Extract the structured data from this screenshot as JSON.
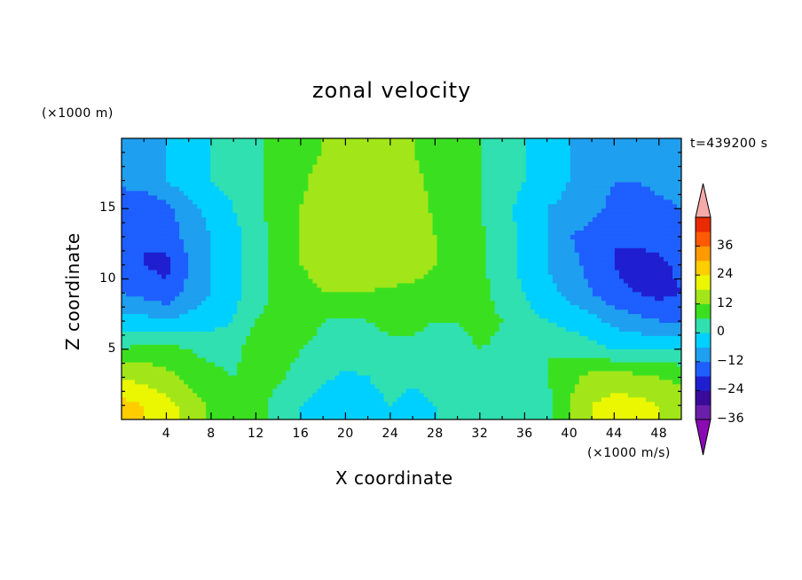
{
  "chart_data": {
    "type": "heatmap",
    "title": "zonal velocity",
    "xlabel": "X coordinate",
    "ylabel": "Z coordinate",
    "x_unit": "(×1000 m/s)",
    "y_unit": "(×1000 m)",
    "time_label": "t=439200 s",
    "xlim": [
      0,
      50
    ],
    "ylim": [
      0,
      20
    ],
    "x_ticks": [
      4,
      8,
      12,
      16,
      20,
      24,
      28,
      32,
      36,
      40,
      44,
      48
    ],
    "y_ticks": [
      5,
      10,
      15
    ],
    "x_tick_labels": [
      "4",
      "8",
      "12",
      "16",
      "20",
      "24",
      "28",
      "32",
      "36",
      "40",
      "44",
      "48"
    ],
    "y_tick_labels": [
      "5",
      "10",
      "15"
    ],
    "colorbar": {
      "levels": [
        -42,
        -36,
        -30,
        -24,
        -18,
        -12,
        -6,
        0,
        6,
        12,
        18,
        24,
        30,
        36,
        42
      ],
      "tick_values": [
        -36,
        -24,
        -12,
        0,
        12,
        24,
        36
      ],
      "tick_labels": [
        "−36",
        "−24",
        "−12",
        "0",
        "12",
        "24",
        "36"
      ],
      "colors": [
        "#6a1fa8",
        "#3a0a9a",
        "#1f1fd0",
        "#1e5fff",
        "#1f9fef",
        "#00d0ff",
        "#30e0b0",
        "#3ae020",
        "#a2e619",
        "#eaf700",
        "#ffcd00",
        "#ff9a00",
        "#ff5a00",
        "#ea2a00"
      ],
      "under_color": "#8a0ab4",
      "over_color": "#f7aaaa"
    },
    "field": {
      "description_units": "m/s",
      "x_grid": [
        0,
        2,
        4,
        6,
        8,
        10,
        12,
        14,
        16,
        18,
        20,
        22,
        24,
        26,
        28,
        30,
        32,
        34,
        36,
        38,
        40,
        42,
        44,
        46,
        48,
        50
      ],
      "z_grid": [
        1,
        3,
        5,
        7,
        9,
        11,
        13,
        15,
        17,
        19
      ],
      "values": [
        [
          20,
          18,
          14,
          10,
          5,
          3,
          2,
          -2,
          -6,
          -9,
          -10,
          -8,
          -6,
          -8,
          -6,
          -4,
          -2,
          -4,
          -6,
          -2,
          6,
          12,
          14,
          14,
          12,
          10
        ],
        [
          12,
          10,
          8,
          4,
          2,
          0,
          2,
          1,
          -2,
          -5,
          -7,
          -6,
          -4,
          -5,
          -4,
          -3,
          -2,
          -3,
          -2,
          0,
          4,
          8,
          9,
          8,
          6,
          4
        ],
        [
          0,
          2,
          2,
          0,
          -2,
          -2,
          4,
          3,
          0,
          -2,
          -3,
          -3,
          -2,
          -2,
          -3,
          -2,
          0,
          -1,
          0,
          0,
          -2,
          -4,
          -6,
          -7,
          -6,
          -5
        ],
        [
          -10,
          -10,
          -12,
          -10,
          -8,
          -6,
          0,
          3,
          3,
          0,
          -1,
          0,
          2,
          2,
          0,
          0,
          2,
          0,
          -4,
          -6,
          -8,
          -10,
          -14,
          -16,
          -18,
          -18
        ],
        [
          -18,
          -20,
          -22,
          -16,
          -12,
          -8,
          -3,
          2,
          4,
          6,
          6,
          6,
          5,
          5,
          4,
          2,
          2,
          -2,
          -6,
          -10,
          -14,
          -18,
          -22,
          -24,
          -26,
          -24
        ],
        [
          -20,
          -24,
          -26,
          -18,
          -12,
          -8,
          -3,
          2,
          6,
          8,
          8,
          9,
          9,
          8,
          6,
          2,
          1,
          -3,
          -8,
          -12,
          -16,
          -20,
          -24,
          -28,
          -26,
          -22
        ],
        [
          -18,
          -24,
          -22,
          -16,
          -12,
          -8,
          -3,
          3,
          6,
          9,
          10,
          10,
          10,
          9,
          6,
          2,
          1,
          -3,
          -8,
          -12,
          -18,
          -20,
          -24,
          -22,
          -20,
          -18
        ],
        [
          -24,
          -24,
          -20,
          -14,
          -10,
          -6,
          -2,
          3,
          6,
          9,
          11,
          11,
          10,
          9,
          5,
          2,
          0,
          -4,
          -8,
          -12,
          -14,
          -16,
          -20,
          -22,
          -20,
          -18
        ],
        [
          -16,
          -14,
          -12,
          -8,
          -6,
          -4,
          -1,
          3,
          5,
          8,
          10,
          10,
          9,
          8,
          4,
          2,
          0,
          -3,
          -6,
          -8,
          -12,
          -14,
          -18,
          -18,
          -16,
          -14
        ],
        [
          -16,
          -14,
          -12,
          -8,
          -6,
          -3,
          -1,
          2,
          4,
          6,
          8,
          8,
          7,
          6,
          3,
          1,
          0,
          -3,
          -6,
          -9,
          -12,
          -14,
          -18,
          -18,
          -16,
          -14
        ]
      ]
    }
  }
}
